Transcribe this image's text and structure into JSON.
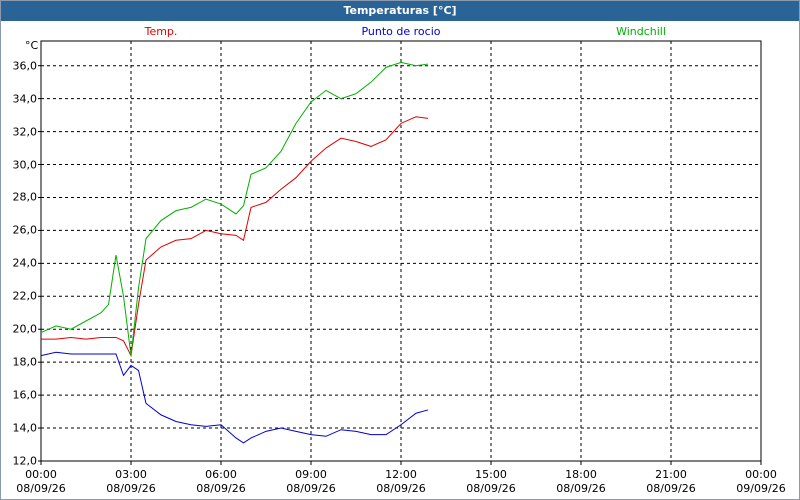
{
  "chart_data": {
    "type": "line",
    "title": "Temperaturas [°C]",
    "y_label": "°C",
    "x": [
      0,
      0.5,
      1,
      1.5,
      2,
      2.25,
      2.5,
      2.75,
      3,
      3.25,
      3.5,
      4,
      4.5,
      5,
      5.5,
      6,
      6.5,
      6.75,
      7,
      7.5,
      8,
      8.5,
      9,
      9.5,
      10,
      10.5,
      11,
      11.5,
      12,
      12.5,
      12.9
    ],
    "series": [
      {
        "name": "Temp.",
        "color": "#e00000",
        "values": [
          19.4,
          19.4,
          19.5,
          19.4,
          19.5,
          19.5,
          19.5,
          19.3,
          18.4,
          21.5,
          24.2,
          25.0,
          25.4,
          25.5,
          26.0,
          25.8,
          25.7,
          25.4,
          27.4,
          27.7,
          28.5,
          29.2,
          30.2,
          31.0,
          31.6,
          31.4,
          31.1,
          31.5,
          32.5,
          32.9,
          32.8
        ]
      },
      {
        "name": "Punto de rocio",
        "color": "#0000d0",
        "values": [
          18.4,
          18.6,
          18.5,
          18.5,
          18.5,
          18.5,
          18.5,
          17.2,
          17.8,
          17.5,
          15.5,
          14.8,
          14.4,
          14.2,
          14.1,
          14.2,
          13.4,
          13.1,
          13.4,
          13.8,
          14.0,
          13.8,
          13.6,
          13.5,
          13.9,
          13.8,
          13.6,
          13.6,
          14.2,
          14.9,
          15.1
        ]
      },
      {
        "name": "Windchill",
        "color": "#00b000",
        "values": [
          19.8,
          20.2,
          20.0,
          20.5,
          21.0,
          21.5,
          24.5,
          22.0,
          18.4,
          22.5,
          25.5,
          26.6,
          27.2,
          27.4,
          27.9,
          27.6,
          27.0,
          27.5,
          29.4,
          29.8,
          30.8,
          32.5,
          33.8,
          34.5,
          34.0,
          34.3,
          35.0,
          35.9,
          36.2,
          36.0,
          36.1
        ]
      }
    ],
    "xlim": [
      0,
      24
    ],
    "xticks": [
      {
        "value": 0,
        "label": "00:00\n08/09/26"
      },
      {
        "value": 3,
        "label": "03:00\n08/09/26"
      },
      {
        "value": 6,
        "label": "06:00\n08/09/26"
      },
      {
        "value": 9,
        "label": "09:00\n08/09/26"
      },
      {
        "value": 12,
        "label": "12:00\n08/09/26"
      },
      {
        "value": 15,
        "label": "15:00\n08/09/26"
      },
      {
        "value": 18,
        "label": "18:00\n08/09/26"
      },
      {
        "value": 21,
        "label": "21:00\n08/09/26"
      },
      {
        "value": 24,
        "label": "00:00\n09/09/26"
      }
    ],
    "ylim": [
      12,
      37.5
    ],
    "yticks": [
      {
        "value": 12,
        "label": "12,0"
      },
      {
        "value": 14,
        "label": "14,0"
      },
      {
        "value": 16,
        "label": "16,0"
      },
      {
        "value": 18,
        "label": "18,0"
      },
      {
        "value": 20,
        "label": "20,0"
      },
      {
        "value": 22,
        "label": "22,0"
      },
      {
        "value": 24,
        "label": "24,0"
      },
      {
        "value": 26,
        "label": "26,0"
      },
      {
        "value": 28,
        "label": "28,0"
      },
      {
        "value": 30,
        "label": "30,0"
      },
      {
        "value": 32,
        "label": "32,0"
      },
      {
        "value": 34,
        "label": "34,0"
      },
      {
        "value": 36,
        "label": "36,0"
      }
    ],
    "grid": true
  }
}
